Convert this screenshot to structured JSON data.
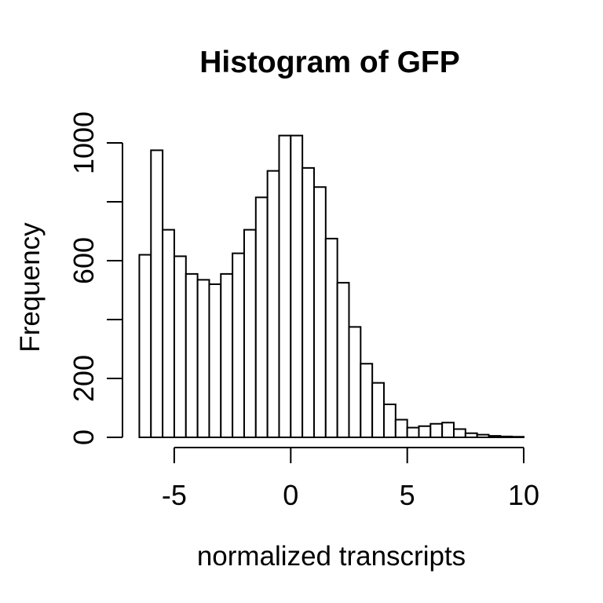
{
  "chart_data": {
    "type": "bar",
    "subtype": "histogram",
    "title": "Histogram of GFP",
    "xlabel": "normalized transcripts",
    "ylabel": "Frequency",
    "bin_start": -6.5,
    "bin_width": 0.5,
    "counts": [
      620,
      975,
      705,
      615,
      555,
      535,
      520,
      555,
      625,
      705,
      815,
      905,
      1025,
      1025,
      915,
      850,
      675,
      525,
      375,
      250,
      185,
      112,
      60,
      33,
      38,
      46,
      50,
      28,
      14,
      9,
      5,
      3,
      2
    ],
    "x_ticks": [
      -5,
      0,
      5,
      10
    ],
    "y_ticks": [
      0,
      200,
      400,
      600,
      800,
      1000
    ],
    "y_tick_labels": [
      "0",
      "200",
      "",
      "600",
      "",
      "1000"
    ],
    "xlim": [
      -6.5,
      10
    ],
    "ylim": [
      0,
      1030
    ],
    "grid": false,
    "legend_position": "none",
    "colors": {
      "background": "#ffffff",
      "bar_fill": "#ffffff",
      "bar_stroke": "#000000",
      "axis": "#000000",
      "text": "#000000"
    }
  }
}
